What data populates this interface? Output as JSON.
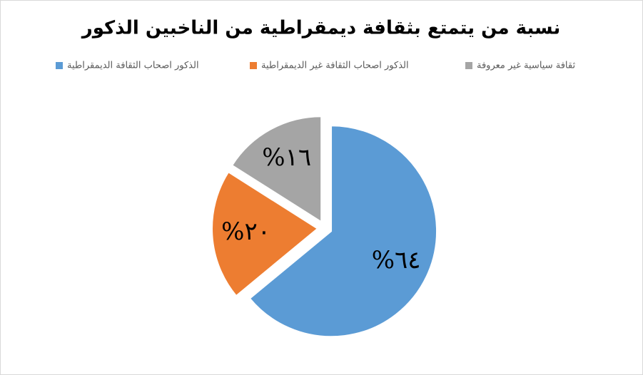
{
  "chart_data": {
    "type": "pie",
    "title": "نسبة من يتمتع بثقافة ديمقراطية من الناخبين الذكور",
    "categories": [
      "الذكور اصحاب الثقافة الديمقراطية",
      "الذكور اصحاب الثقافة غير الديمقراطية",
      "ثقافة سياسية غير معروفة"
    ],
    "values": [
      64,
      20,
      16
    ],
    "value_labels": [
      "٦٤%",
      "٢٠%",
      "١٦%"
    ],
    "colors": [
      "#5b9bd5",
      "#ed7d31",
      "#a5a5a5"
    ],
    "legend": "top"
  }
}
